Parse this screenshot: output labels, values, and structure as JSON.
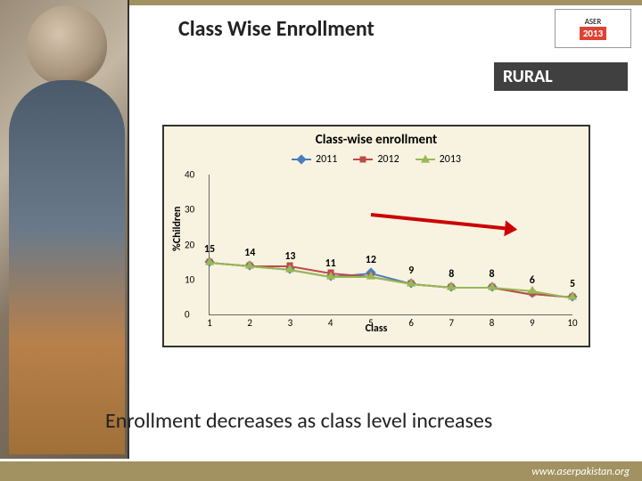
{
  "slide": {
    "title": "Class Wise Enrollment",
    "badge": "RURAL",
    "conclusion": "Enrollment decreases as class level increases",
    "footer_link": "www.aserpakistan.org"
  },
  "logo": {
    "name": "ASER",
    "year": "2013"
  },
  "chart": {
    "type": "line",
    "title": "Class-wise enrollment",
    "background_color": "#f8f3e0",
    "border_color": "#333333",
    "xlabel": "Class",
    "ylabel": "%Children",
    "xlim": [
      1,
      10
    ],
    "ylim": [
      0,
      40
    ],
    "ytick_step": 10,
    "x_categories": [
      1,
      2,
      3,
      4,
      5,
      6,
      7,
      8,
      9,
      10
    ],
    "font_family": "Calibri",
    "label_fontsize": 12,
    "value_label_fontsize": 12,
    "series": [
      {
        "name": "2011",
        "color": "#4a7ebb",
        "marker": "diamond",
        "values": [
          15,
          14,
          13,
          11,
          12,
          9,
          8,
          8,
          6,
          5
        ]
      },
      {
        "name": "2012",
        "color": "#be4b48",
        "marker": "square",
        "values": [
          15,
          14,
          14,
          12,
          11,
          9,
          8,
          8,
          6,
          5
        ]
      },
      {
        "name": "2013",
        "color": "#98b954",
        "marker": "triangle",
        "values": [
          15,
          14,
          13,
          11,
          11,
          9,
          8,
          8,
          7,
          5
        ]
      }
    ],
    "value_labels": [
      15,
      14,
      13,
      11,
      12,
      9,
      8,
      8,
      6,
      5
    ],
    "annotation_arrow": {
      "color": "#cc0000",
      "from_x": 5.0,
      "from_y": 29,
      "to_x": 8.4,
      "to_y": 25
    }
  }
}
